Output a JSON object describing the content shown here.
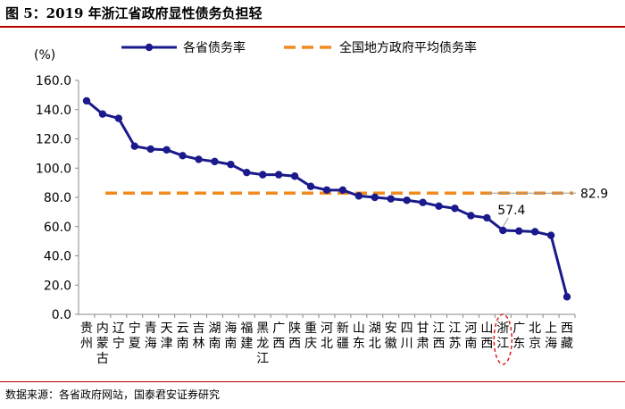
{
  "figure": {
    "title": "图 5：2019 年浙江省政府显性债务负担轻",
    "source": "数据来源：各省政府网站，国泰君安证券研究"
  },
  "chart_data": {
    "type": "line",
    "ylabel": "(%)",
    "ylim": [
      0,
      160
    ],
    "yticks": [
      "0.0",
      "20.0",
      "40.0",
      "60.0",
      "80.0",
      "100.0",
      "120.0",
      "140.0",
      "160.0"
    ],
    "grid": false,
    "legend_position": "top",
    "categories": [
      "贵州",
      "内蒙古",
      "辽宁",
      "宁夏",
      "青海",
      "天津",
      "云南",
      "吉林",
      "湖南",
      "海南",
      "福建",
      "黑龙江",
      "广西",
      "陕西",
      "重庆",
      "河北",
      "新疆",
      "山东",
      "湖北",
      "安徽",
      "四川",
      "甘肃",
      "江西",
      "江苏",
      "河南",
      "山西",
      "浙江",
      "广东",
      "北京",
      "上海",
      "西藏"
    ],
    "series": [
      {
        "name": "各省债务率",
        "style": "solid-line-with-markers",
        "color": "#1a1a8c",
        "values": [
          146,
          137,
          134,
          115,
          113,
          112.5,
          108.5,
          106,
          104.5,
          102.5,
          97,
          95.5,
          95.5,
          94.5,
          87.5,
          85,
          85,
          81,
          80,
          79,
          78,
          76.5,
          74,
          72.5,
          67.5,
          66,
          57.4,
          57,
          56.5,
          54,
          12
        ]
      },
      {
        "name": "全国地方政府平均债务率",
        "style": "dashed-line",
        "color": "#f28a1e",
        "value": 82.9
      }
    ],
    "annotations": [
      {
        "text": "57.4",
        "category": "浙江",
        "value": 57.4
      },
      {
        "text": "82.9",
        "value": 82.9,
        "target": "全国地方政府平均债务率"
      }
    ],
    "highlight": {
      "category": "浙江",
      "shape": "red-dashed-ellipse",
      "color": "#e0201a"
    }
  }
}
